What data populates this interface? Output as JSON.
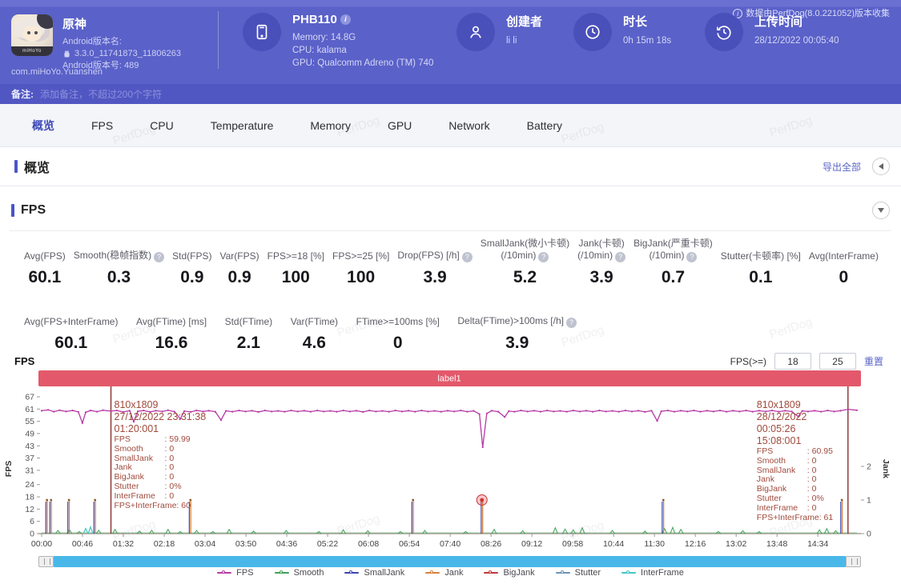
{
  "watermark": "PerfDog",
  "header": {
    "collect_info": "数据由PerfDog(8.0.221052)版本收集",
    "app": {
      "name": "原神",
      "icon_text": "miHoYo",
      "version_label": "Android版本名:",
      "version": "3.3.0_11741873_11806263",
      "build": "Android版本号: 489",
      "package": "com.miHoYo.Yuanshen"
    },
    "device": {
      "name": "PHB110",
      "memory": "Memory: 14.8G",
      "cpu": "CPU: kalama",
      "gpu": "GPU: Qualcomm Adreno (TM) 740"
    },
    "creator": {
      "label": "创建者",
      "value": "li li"
    },
    "duration": {
      "label": "时长",
      "value": "0h 15m 18s"
    },
    "upload": {
      "label": "上传时间",
      "value": "28/12/2022 00:05:40"
    }
  },
  "note_bar": {
    "label": "备注:",
    "placeholder": "添加备注，不超过200个字符"
  },
  "tabs": {
    "active_index": 0,
    "items": [
      "概览",
      "FPS",
      "CPU",
      "Temperature",
      "Memory",
      "GPU",
      "Network",
      "Battery"
    ]
  },
  "overview": {
    "title": "概览",
    "export_label": "导出全部"
  },
  "fps": {
    "title": "FPS",
    "chart_label": "FPS",
    "filter_label": "FPS(>=)",
    "threshold1": "18",
    "threshold2": "25",
    "reset_label": "重置",
    "stats_row1": [
      {
        "label": "Avg(FPS)",
        "value": "60.1"
      },
      {
        "label": "Smooth(稳帧指数)",
        "value": "0.3",
        "help": true
      },
      {
        "label": "Std(FPS)",
        "value": "0.9"
      },
      {
        "label": "Var(FPS)",
        "value": "0.9"
      },
      {
        "label": "FPS>=18 [%]",
        "value": "100"
      },
      {
        "label": "FPS>=25 [%]",
        "value": "100"
      },
      {
        "label": "Drop(FPS) [/h]",
        "value": "3.9",
        "help": true
      },
      {
        "label": "SmallJank(微小卡顿)",
        "label2": "(/10min)",
        "value": "5.2",
        "help": true
      },
      {
        "label": "Jank(卡顿)",
        "label2": "(/10min)",
        "value": "3.9",
        "help": true
      },
      {
        "label": "BigJank(严重卡顿)",
        "label2": "(/10min)",
        "value": "0.7",
        "help": true
      },
      {
        "label": "Stutter(卡顿率) [%]",
        "value": "0.1"
      },
      {
        "label": "Avg(InterFrame)",
        "value": "0"
      }
    ],
    "stats_row2": [
      {
        "label": "Avg(FPS+InterFrame)",
        "value": "60.1"
      },
      {
        "label": "Avg(FTime) [ms]",
        "value": "16.6"
      },
      {
        "label": "Std(FTime)",
        "value": "2.1"
      },
      {
        "label": "Var(FTime)",
        "value": "4.6"
      },
      {
        "label": "FTime>=100ms [%]",
        "value": "0"
      },
      {
        "label": "Delta(FTime)>100ms [/h]",
        "value": "3.9",
        "help": true
      }
    ]
  },
  "chart_data": {
    "type": "line",
    "title": "label1",
    "duration_s": 918,
    "x_ticks": [
      "00:00",
      "00:46",
      "01:32",
      "02:18",
      "03:04",
      "03:50",
      "04:36",
      "05:22",
      "06:08",
      "06:54",
      "07:40",
      "08:26",
      "09:12",
      "09:58",
      "10:44",
      "11:30",
      "12:16",
      "13:02",
      "13:48",
      "14:34"
    ],
    "y_left": {
      "label": "FPS",
      "ticks": [
        67,
        61,
        55,
        49,
        43,
        37,
        31,
        24,
        18,
        12,
        6,
        0
      ],
      "max": 67
    },
    "y_right": {
      "label": "Jank",
      "ticks": [
        2,
        1,
        0
      ],
      "max": 2
    },
    "series_colors": {
      "fps": "#b73aa5",
      "smooth": "#3fa054",
      "smalljank": "#3c44b0",
      "jank": "#d4813c",
      "bigjank": "#c03838",
      "stutter": "#6b93b5",
      "interframe": "#45c5c5"
    },
    "legend": [
      "FPS",
      "Smooth",
      "SmallJank",
      "Jank",
      "BigJank",
      "Stutter",
      "InterFrame"
    ],
    "fps_line": [
      [
        0,
        60.2
      ],
      [
        0.008,
        60.6
      ],
      [
        0.015,
        59.7
      ],
      [
        0.022,
        60.4
      ],
      [
        0.03,
        59.8
      ],
      [
        0.038,
        60.3
      ],
      [
        0.045,
        59.6
      ],
      [
        0.05,
        54.2
      ],
      [
        0.054,
        59.4
      ],
      [
        0.06,
        60.3
      ],
      [
        0.068,
        59.7
      ],
      [
        0.075,
        60.4
      ],
      [
        0.085,
        60.0
      ],
      [
        0.092,
        60.3
      ],
      [
        0.1,
        59.6
      ],
      [
        0.108,
        60.2
      ],
      [
        0.113,
        54.8
      ],
      [
        0.118,
        59.9
      ],
      [
        0.125,
        60.3
      ],
      [
        0.133,
        59.6
      ],
      [
        0.14,
        60.2
      ],
      [
        0.148,
        59.8
      ],
      [
        0.155,
        60.4
      ],
      [
        0.163,
        59.7
      ],
      [
        0.17,
        56.2
      ],
      [
        0.175,
        60.0
      ],
      [
        0.183,
        59.6
      ],
      [
        0.19,
        60.3
      ],
      [
        0.198,
        59.8
      ],
      [
        0.205,
        60.2
      ],
      [
        0.213,
        59.7
      ],
      [
        0.22,
        55.6
      ],
      [
        0.226,
        60.1
      ],
      [
        0.234,
        59.7
      ],
      [
        0.242,
        60.3
      ],
      [
        0.25,
        59.8
      ],
      [
        0.258,
        60.2
      ],
      [
        0.266,
        59.6
      ],
      [
        0.274,
        60.3
      ],
      [
        0.282,
        59.8
      ],
      [
        0.29,
        60.1
      ],
      [
        0.298,
        59.7
      ],
      [
        0.306,
        60.3
      ],
      [
        0.314,
        59.8
      ],
      [
        0.322,
        60.2
      ],
      [
        0.33,
        59.7
      ],
      [
        0.338,
        60.3
      ],
      [
        0.346,
        59.8
      ],
      [
        0.354,
        60.1
      ],
      [
        0.362,
        59.7
      ],
      [
        0.37,
        60.3
      ],
      [
        0.378,
        59.8
      ],
      [
        0.386,
        60.2
      ],
      [
        0.394,
        59.6
      ],
      [
        0.402,
        60.3
      ],
      [
        0.41,
        59.8
      ],
      [
        0.418,
        60.1
      ],
      [
        0.426,
        59.7
      ],
      [
        0.434,
        60.3
      ],
      [
        0.442,
        59.8
      ],
      [
        0.45,
        60.2
      ],
      [
        0.458,
        59.7
      ],
      [
        0.466,
        60.3
      ],
      [
        0.474,
        59.8
      ],
      [
        0.482,
        60.1
      ],
      [
        0.49,
        59.7
      ],
      [
        0.498,
        60.2
      ],
      [
        0.506,
        59.8
      ],
      [
        0.514,
        60.3
      ],
      [
        0.522,
        59.7
      ],
      [
        0.53,
        60.1
      ],
      [
        0.537,
        58.5
      ],
      [
        0.541,
        42.3
      ],
      [
        0.546,
        58.8
      ],
      [
        0.552,
        60.2
      ],
      [
        0.56,
        59.7
      ],
      [
        0.568,
        57.1
      ],
      [
        0.573,
        60.0
      ],
      [
        0.58,
        59.7
      ],
      [
        0.588,
        60.3
      ],
      [
        0.596,
        59.8
      ],
      [
        0.604,
        60.2
      ],
      [
        0.612,
        59.7
      ],
      [
        0.62,
        60.3
      ],
      [
        0.628,
        59.8
      ],
      [
        0.636,
        60.1
      ],
      [
        0.644,
        59.7
      ],
      [
        0.652,
        60.3
      ],
      [
        0.66,
        59.8
      ],
      [
        0.668,
        60.2
      ],
      [
        0.676,
        59.7
      ],
      [
        0.684,
        60.3
      ],
      [
        0.692,
        59.8
      ],
      [
        0.7,
        60.1
      ],
      [
        0.708,
        59.7
      ],
      [
        0.716,
        60.3
      ],
      [
        0.724,
        59.8
      ],
      [
        0.732,
        60.2
      ],
      [
        0.74,
        59.6
      ],
      [
        0.748,
        60.2
      ],
      [
        0.755,
        55.2
      ],
      [
        0.76,
        59.9
      ],
      [
        0.768,
        60.3
      ],
      [
        0.776,
        59.7
      ],
      [
        0.784,
        60.2
      ],
      [
        0.792,
        59.8
      ],
      [
        0.8,
        60.3
      ],
      [
        0.808,
        59.7
      ],
      [
        0.816,
        60.2
      ],
      [
        0.824,
        59.8
      ],
      [
        0.832,
        60.3
      ],
      [
        0.84,
        59.7
      ],
      [
        0.848,
        60.2
      ],
      [
        0.856,
        59.8
      ],
      [
        0.864,
        60.3
      ],
      [
        0.872,
        59.7
      ],
      [
        0.88,
        60.2
      ],
      [
        0.888,
        59.8
      ],
      [
        0.896,
        60.3
      ],
      [
        0.904,
        59.7
      ],
      [
        0.912,
        60.2
      ],
      [
        0.92,
        59.8
      ],
      [
        0.928,
        57.3
      ],
      [
        0.933,
        60.1
      ],
      [
        0.94,
        59.8
      ],
      [
        0.948,
        60.2
      ],
      [
        0.956,
        59.7
      ],
      [
        0.964,
        60.3
      ],
      [
        0.972,
        59.8
      ],
      [
        0.98,
        60.2
      ],
      [
        0.989,
        60.9
      ],
      [
        1,
        60.4
      ]
    ],
    "jank_spikes": [
      {
        "x": 0.006
      },
      {
        "x": 0.011
      },
      {
        "x": 0.033
      },
      {
        "x": 0.065
      },
      {
        "x": 0.182
      },
      {
        "x": 0.455
      },
      {
        "x": 0.54,
        "selected": true
      },
      {
        "x": 0.762
      },
      {
        "x": 0.981
      }
    ],
    "smooth_bumps": [
      [
        0.02,
        1.5
      ],
      [
        0.034,
        2
      ],
      [
        0.046,
        1
      ],
      [
        0.07,
        1.6
      ],
      [
        0.09,
        2
      ],
      [
        0.12,
        1.2
      ],
      [
        0.135,
        1.6
      ],
      [
        0.155,
        2
      ],
      [
        0.17,
        1
      ],
      [
        0.19,
        1.5
      ],
      [
        0.21,
        1
      ],
      [
        0.23,
        2
      ],
      [
        0.26,
        1.2
      ],
      [
        0.3,
        1.5
      ],
      [
        0.34,
        1
      ],
      [
        0.37,
        1.8
      ],
      [
        0.4,
        1.4
      ],
      [
        0.44,
        1
      ],
      [
        0.47,
        1.5
      ],
      [
        0.52,
        1
      ],
      [
        0.555,
        2
      ],
      [
        0.59,
        1.4
      ],
      [
        0.63,
        2.8
      ],
      [
        0.642,
        2.2
      ],
      [
        0.652,
        1.8
      ],
      [
        0.663,
        2.8
      ],
      [
        0.7,
        1.5
      ],
      [
        0.74,
        1.2
      ],
      [
        0.764,
        2.4
      ],
      [
        0.774,
        3
      ],
      [
        0.784,
        2
      ],
      [
        0.83,
        1
      ],
      [
        0.86,
        1.4
      ],
      [
        0.88,
        1
      ],
      [
        0.954,
        1.8
      ],
      [
        0.963,
        2.4
      ],
      [
        0.974,
        1.4
      ]
    ],
    "interframe_bumps": [
      [
        0.054,
        2.5
      ],
      [
        0.06,
        3.2
      ]
    ],
    "markers": [
      {
        "x": 0.085,
        "align": "left",
        "tooltip": {
          "resolution": "810x1809",
          "date": "27/12/2022 23:31:38",
          "time": "01:20:001",
          "rows": [
            [
              "FPS",
              "59.99"
            ],
            [
              "Smooth",
              "0"
            ],
            [
              "SmallJank",
              "0"
            ],
            [
              "Jank",
              "0"
            ],
            [
              "BigJank",
              "0"
            ],
            [
              "Stutter",
              "0%"
            ],
            [
              "InterFrame",
              "0"
            ],
            [
              "FPS+InterFrame",
              "60"
            ]
          ]
        }
      },
      {
        "x": 0.989,
        "align": "right",
        "tooltip": {
          "resolution": "810x1809",
          "date": "28/12/2022 00:05:26",
          "time": "15:08:001",
          "rows": [
            [
              "FPS",
              "60.95"
            ],
            [
              "Smooth",
              "0"
            ],
            [
              "SmallJank",
              "0"
            ],
            [
              "Jank",
              "0"
            ],
            [
              "BigJank",
              "0"
            ],
            [
              "Stutter",
              "0%"
            ],
            [
              "InterFrame",
              "0"
            ],
            [
              "FPS+InterFrame",
              "61"
            ]
          ]
        }
      }
    ]
  }
}
